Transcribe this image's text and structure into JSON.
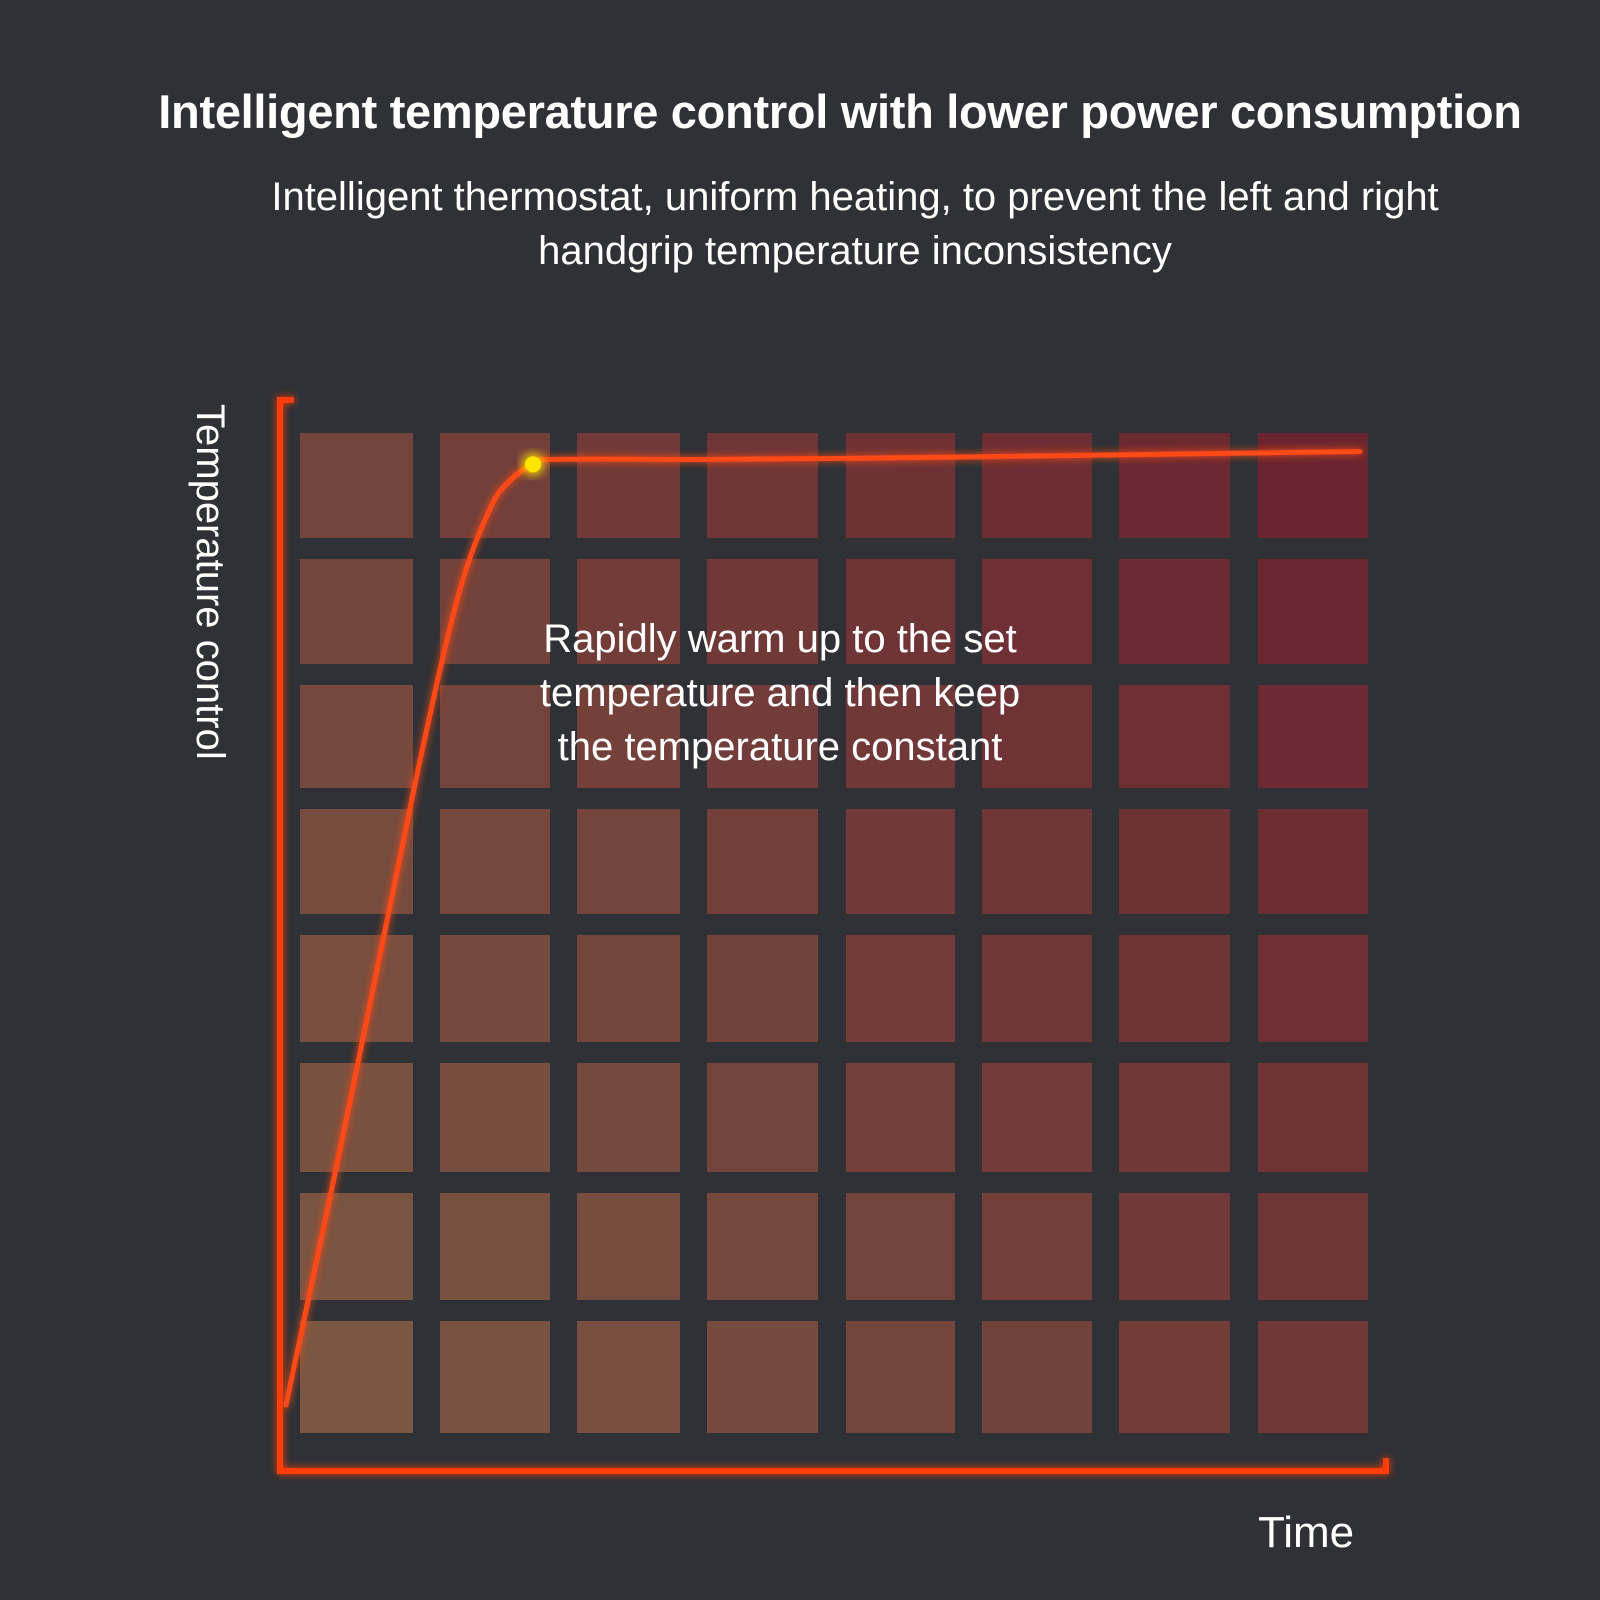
{
  "header": {
    "title": "Intelligent temperature control with lower power consumption",
    "subtitle_lines": [
      "Intelligent thermostat, uniform heating, to prevent the left and right",
      "handgrip temperature inconsistency"
    ]
  },
  "chart_data": {
    "type": "line",
    "title": "Intelligent temperature control with lower power consumption",
    "xlabel": "Time",
    "ylabel": "Temperature control",
    "grid": true,
    "x_ticks": [],
    "y_ticks": [],
    "xlim": [
      0,
      1
    ],
    "ylim": [
      0,
      1
    ],
    "series": [
      {
        "values_x": [
          0,
          0.06,
          0.12,
          0.16,
          0.19,
          0.21,
          0.23,
          0.25,
          0.4,
          0.6,
          0.8,
          1.0
        ],
        "values_y": [
          0,
          0.31,
          0.63,
          0.82,
          0.91,
          0.94,
          0.955,
          0.96,
          0.96,
          0.962,
          0.965,
          0.968
        ]
      }
    ],
    "marker": {
      "x": 0.23,
      "y": 0.955
    },
    "annotation_lines": [
      "Rapidly warm up to the set",
      "temperature and then keep",
      "the temperature constant"
    ],
    "colors": {
      "axis": "#ff3d10",
      "line": "#ff4a12",
      "marker": "#ffe600",
      "cell_bottom_left": "#7a5743",
      "cell_top_right": "#6a2530",
      "background": "#2f3136"
    }
  }
}
